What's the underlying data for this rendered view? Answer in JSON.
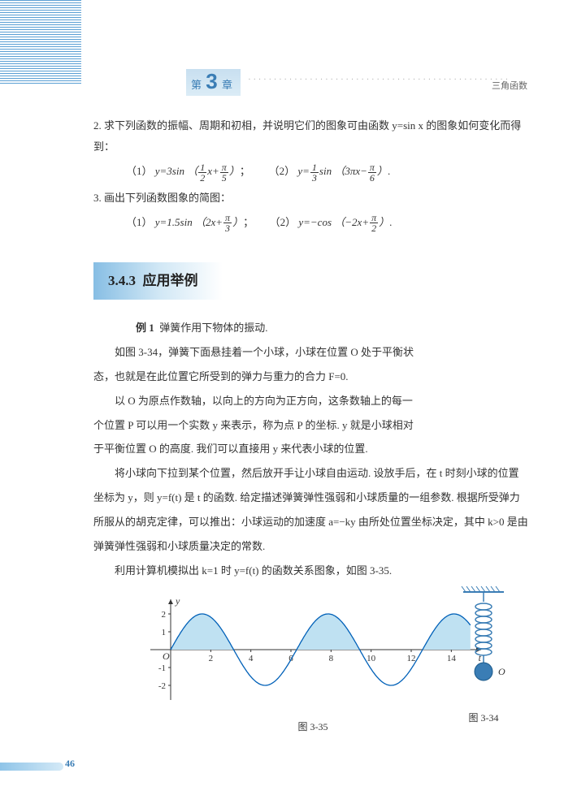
{
  "header": {
    "chapter_prefix": "第",
    "chapter_num": "3",
    "chapter_suffix": "章",
    "dots": "···················································",
    "subject": "三角函数"
  },
  "q2": {
    "stem": "2. 求下列函数的振幅、周期和初相，并说明它们的图象可由函数 y=sin x 的图象如何变化而得到：",
    "item1_label": "（1）",
    "item1_expr": "y=3sin",
    "item1_frac_a_n": "1",
    "item1_frac_a_d": "2",
    "item1_mid": "x+",
    "item1_frac_b_n": "π",
    "item1_frac_b_d": "5",
    "item1_tail": "；",
    "item2_label": "（2）",
    "item2_expr_pre": "y=",
    "item2_frac_a_n": "1",
    "item2_frac_a_d": "3",
    "item2_expr_mid": "sin",
    "item2_inner_left": "3πx−",
    "item2_frac_b_n": "π",
    "item2_frac_b_d": "6",
    "item2_tail": "."
  },
  "q3": {
    "stem": "3. 画出下列函数图象的简图：",
    "item1_label": "（1）",
    "item1_expr": "y=1.5sin",
    "item1_inner": "2x+",
    "item1_frac_n": "π",
    "item1_frac_d": "3",
    "item1_tail": "；",
    "item2_label": "（2）",
    "item2_expr": "y=−cos",
    "item2_inner": "−2x+",
    "item2_frac_n": "π",
    "item2_frac_d": "2",
    "item2_tail": "."
  },
  "section": {
    "number": "3.4.3",
    "title": "应用举例"
  },
  "example": {
    "label": "例 1",
    "title": "弹簧作用下物体的振动.",
    "p1": "如图 3-34，弹簧下面悬挂着一个小球，小球在位置 O 处于平衡状态，也就是在此位置它所受到的弹力与重力的合力 F=0.",
    "p2": "以 O 为原点作数轴，以向上的方向为正方向，这条数轴上的每一个位置 P 可以用一个实数 y 来表示，称为点 P 的坐标. y 就是小球相对于平衡位置 O 的高度. 我们可以直接用 y 来代表小球的位置.",
    "p3": "将小球向下拉到某个位置，然后放开手让小球自由运动. 设放手后，在 t 时刻小球的位置坐标为 y，则 y=f(t) 是 t 的函数. 给定描述弹簧弹性强弱和小球质量的一组参数. 根据所受弹力所服从的胡克定律，可以推出：小球运动的加速度 a=−ky 由所处位置坐标决定，其中 k>0 是由弹簧弹性强弱和小球质量决定的常数.",
    "p4": "利用计算机模拟出 k=1 时 y=f(t) 的函数关系图象，如图 3-35."
  },
  "figure_spring": {
    "caption": "图 3-34",
    "label_O": "O",
    "hatch_color": "#3a7db5",
    "coil_color": "#3a7db5",
    "ball_fill": "#3a7db5",
    "ball_stroke": "#1c5a8a"
  },
  "figure_wave": {
    "caption": "图 3-35",
    "amplitude": 2,
    "ylabel": "y",
    "xlabel": "t",
    "origin_label": "O",
    "xaxis_ticks": [
      2,
      4,
      6,
      8,
      10,
      12,
      14
    ],
    "yaxis_ticks": [
      -2,
      -1,
      1,
      2
    ],
    "ylim": [
      -2.5,
      2.5
    ],
    "xlim": [
      0,
      15
    ],
    "curve_color": "#0060b8",
    "fill_color": "#bfe1f2",
    "grid_color": "#333333",
    "bg_color": "#ffffff",
    "line_width": 1.3
  },
  "footer": {
    "page": "46"
  }
}
